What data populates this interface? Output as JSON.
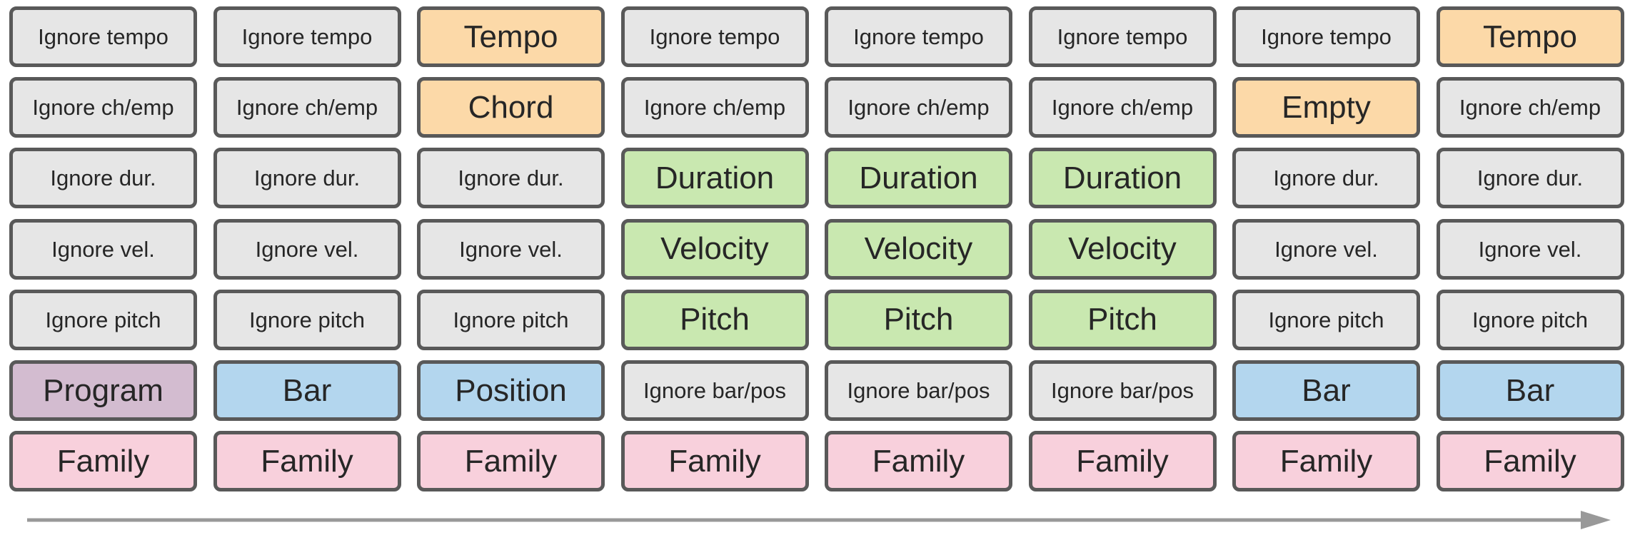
{
  "palette": {
    "ignore": "#e6e6e6",
    "tempo": "#fcd9a8",
    "chord": "#fcd9a8",
    "empty": "#fcd9a8",
    "duration": "#c9e8b0",
    "velocity": "#c9e8b0",
    "pitch": "#c9e8b0",
    "program": "#d3bcd0",
    "bar": "#b3d6ee",
    "position": "#b3d6ee",
    "family": "#f8d0dc",
    "border": "#595959",
    "arrow": "#999999"
  },
  "columns": [
    {
      "cells": [
        {
          "label": "Ignore tempo",
          "kind": "ignore"
        },
        {
          "label": "Ignore ch/emp",
          "kind": "ignore"
        },
        {
          "label": "Ignore dur.",
          "kind": "ignore"
        },
        {
          "label": "Ignore vel.",
          "kind": "ignore"
        },
        {
          "label": "Ignore pitch",
          "kind": "ignore"
        },
        {
          "label": "Program",
          "kind": "program"
        },
        {
          "label": "Family",
          "kind": "family"
        }
      ]
    },
    {
      "cells": [
        {
          "label": "Ignore tempo",
          "kind": "ignore"
        },
        {
          "label": "Ignore ch/emp",
          "kind": "ignore"
        },
        {
          "label": "Ignore dur.",
          "kind": "ignore"
        },
        {
          "label": "Ignore vel.",
          "kind": "ignore"
        },
        {
          "label": "Ignore pitch",
          "kind": "ignore"
        },
        {
          "label": "Bar",
          "kind": "bar"
        },
        {
          "label": "Family",
          "kind": "family"
        }
      ]
    },
    {
      "cells": [
        {
          "label": "Tempo",
          "kind": "tempo"
        },
        {
          "label": "Chord",
          "kind": "chord"
        },
        {
          "label": "Ignore dur.",
          "kind": "ignore"
        },
        {
          "label": "Ignore vel.",
          "kind": "ignore"
        },
        {
          "label": "Ignore pitch",
          "kind": "ignore"
        },
        {
          "label": "Position",
          "kind": "position"
        },
        {
          "label": "Family",
          "kind": "family"
        }
      ]
    },
    {
      "cells": [
        {
          "label": "Ignore tempo",
          "kind": "ignore"
        },
        {
          "label": "Ignore ch/emp",
          "kind": "ignore"
        },
        {
          "label": "Duration",
          "kind": "duration"
        },
        {
          "label": "Velocity",
          "kind": "velocity"
        },
        {
          "label": "Pitch",
          "kind": "pitch"
        },
        {
          "label": "Ignore bar/pos",
          "kind": "ignore"
        },
        {
          "label": "Family",
          "kind": "family"
        }
      ]
    },
    {
      "cells": [
        {
          "label": "Ignore tempo",
          "kind": "ignore"
        },
        {
          "label": "Ignore ch/emp",
          "kind": "ignore"
        },
        {
          "label": "Duration",
          "kind": "duration"
        },
        {
          "label": "Velocity",
          "kind": "velocity"
        },
        {
          "label": "Pitch",
          "kind": "pitch"
        },
        {
          "label": "Ignore bar/pos",
          "kind": "ignore"
        },
        {
          "label": "Family",
          "kind": "family"
        }
      ]
    },
    {
      "cells": [
        {
          "label": "Ignore tempo",
          "kind": "ignore"
        },
        {
          "label": "Ignore ch/emp",
          "kind": "ignore"
        },
        {
          "label": "Duration",
          "kind": "duration"
        },
        {
          "label": "Velocity",
          "kind": "velocity"
        },
        {
          "label": "Pitch",
          "kind": "pitch"
        },
        {
          "label": "Ignore bar/pos",
          "kind": "ignore"
        },
        {
          "label": "Family",
          "kind": "family"
        }
      ]
    },
    {
      "cells": [
        {
          "label": "Ignore tempo",
          "kind": "ignore"
        },
        {
          "label": "Empty",
          "kind": "empty"
        },
        {
          "label": "Ignore dur.",
          "kind": "ignore"
        },
        {
          "label": "Ignore vel.",
          "kind": "ignore"
        },
        {
          "label": "Ignore pitch",
          "kind": "ignore"
        },
        {
          "label": "Bar",
          "kind": "bar"
        },
        {
          "label": "Family",
          "kind": "family"
        }
      ]
    },
    {
      "cells": [
        {
          "label": "Tempo",
          "kind": "tempo"
        },
        {
          "label": "Ignore ch/emp",
          "kind": "ignore"
        },
        {
          "label": "Ignore dur.",
          "kind": "ignore"
        },
        {
          "label": "Ignore vel.",
          "kind": "ignore"
        },
        {
          "label": "Ignore pitch",
          "kind": "ignore"
        },
        {
          "label": "Bar",
          "kind": "bar"
        },
        {
          "label": "Family",
          "kind": "family"
        }
      ]
    }
  ]
}
